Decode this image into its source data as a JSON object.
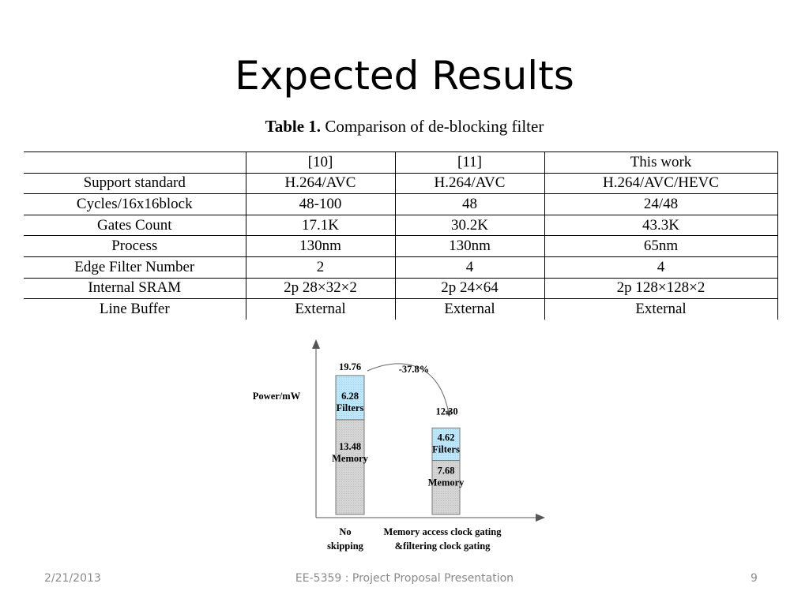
{
  "slide": {
    "title": "Expected Results",
    "footer_date": "2/21/2013",
    "footer_center": "EE-5359 : Project Proposal Presentation",
    "footer_page": "9"
  },
  "table": {
    "caption_bold": "Table 1.",
    "caption_text": " Comparison of de-blocking filter",
    "columns": [
      "",
      "[10]",
      "[11]",
      "This work"
    ],
    "rows": [
      [
        "Support standard",
        "H.264/AVC",
        "H.264/AVC",
        "H.264/AVC/HEVC"
      ],
      [
        "Cycles/16x16block",
        "48-100",
        "48",
        "24/48"
      ],
      [
        "Gates Count",
        "17.1K",
        "30.2K",
        "43.3K"
      ],
      [
        "Process",
        "130nm",
        "130nm",
        "65nm"
      ],
      [
        "Edge Filter Number",
        "2",
        "4",
        "4"
      ],
      [
        "Internal SRAM",
        "2p 28×32×2",
        "2p 24×64",
        "2p 128×128×2"
      ],
      [
        "Line Buffer",
        "External",
        "External",
        "External"
      ]
    ]
  },
  "chart_data": {
    "type": "bar",
    "stacked": true,
    "ylabel": "Power/mW",
    "categories": [
      [
        "No",
        "skipping"
      ],
      [
        "Memory access clock gating",
        "&filtering clock gating"
      ]
    ],
    "series": [
      {
        "name": "Memory",
        "values": [
          13.48,
          7.68
        ],
        "color": "#d3d3d3"
      },
      {
        "name": "Filters",
        "values": [
          6.28,
          4.62
        ],
        "color": "#b9e4f7"
      }
    ],
    "totals": [
      "19.76",
      "12.30"
    ],
    "segment_labels": [
      {
        "value": "13.48",
        "name": "Memory"
      },
      {
        "value": "6.28",
        "name": "Filters"
      },
      {
        "value": "7.68",
        "name": "Memory"
      },
      {
        "value": "4.62",
        "name": "Filters"
      }
    ],
    "annotation": "-37.8%",
    "ylim": [
      0,
      23
    ]
  }
}
